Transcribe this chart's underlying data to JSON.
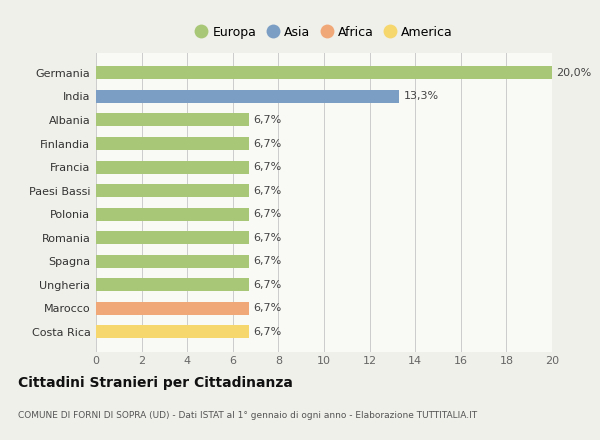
{
  "categories": [
    "Costa Rica",
    "Marocco",
    "Ungheria",
    "Spagna",
    "Romania",
    "Polonia",
    "Paesi Bassi",
    "Francia",
    "Finlandia",
    "Albania",
    "India",
    "Germania"
  ],
  "values": [
    6.7,
    6.7,
    6.7,
    6.7,
    6.7,
    6.7,
    6.7,
    6.7,
    6.7,
    6.7,
    13.3,
    20.0
  ],
  "colors": [
    "#f5d76e",
    "#f0a878",
    "#a8c878",
    "#a8c878",
    "#a8c878",
    "#a8c878",
    "#a8c878",
    "#a8c878",
    "#a8c878",
    "#a8c878",
    "#7b9fc4",
    "#a8c878"
  ],
  "labels": [
    "6,7%",
    "6,7%",
    "6,7%",
    "6,7%",
    "6,7%",
    "6,7%",
    "6,7%",
    "6,7%",
    "6,7%",
    "6,7%",
    "13,3%",
    "20,0%"
  ],
  "legend_labels": [
    "Europa",
    "Asia",
    "Africa",
    "America"
  ],
  "legend_colors": [
    "#a8c878",
    "#7b9fc4",
    "#f0a878",
    "#f5d76e"
  ],
  "xlim": [
    0,
    20
  ],
  "xticks": [
    0,
    2,
    4,
    6,
    8,
    10,
    12,
    14,
    16,
    18,
    20
  ],
  "title": "Cittadini Stranieri per Cittadinanza",
  "subtitle": "COMUNE DI FORNI DI SOPRA (UD) - Dati ISTAT al 1° gennaio di ogni anno - Elaborazione TUTTITALIA.IT",
  "bg_color": "#f0f0eb",
  "plot_bg_color": "#f9f9f6"
}
